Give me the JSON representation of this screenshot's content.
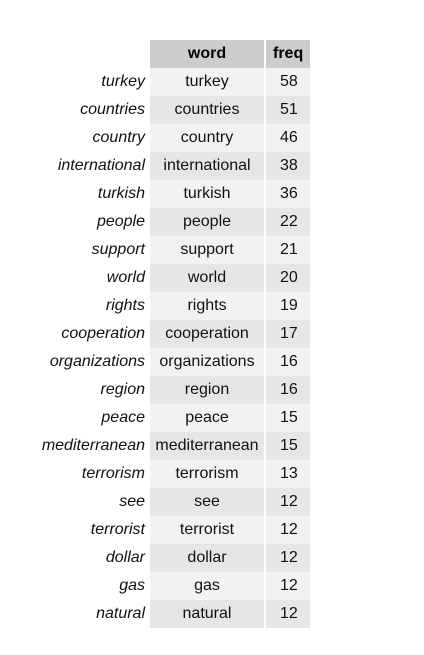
{
  "table": {
    "header": {
      "word": "word",
      "freq": "freq"
    },
    "rows": [
      {
        "label": "turkey",
        "word": "turkey",
        "freq": "58"
      },
      {
        "label": "countries",
        "word": "countries",
        "freq": "51"
      },
      {
        "label": "country",
        "word": "country",
        "freq": "46"
      },
      {
        "label": "international",
        "word": "international",
        "freq": "38"
      },
      {
        "label": "turkish",
        "word": "turkish",
        "freq": "36"
      },
      {
        "label": "people",
        "word": "people",
        "freq": "22"
      },
      {
        "label": "support",
        "word": "support",
        "freq": "21"
      },
      {
        "label": "world",
        "word": "world",
        "freq": "20"
      },
      {
        "label": "rights",
        "word": "rights",
        "freq": "19"
      },
      {
        "label": "cooperation",
        "word": "cooperation",
        "freq": "17"
      },
      {
        "label": "organizations",
        "word": "organizations",
        "freq": "16"
      },
      {
        "label": "region",
        "word": "region",
        "freq": "16"
      },
      {
        "label": "peace",
        "word": "peace",
        "freq": "15"
      },
      {
        "label": "mediterranean",
        "word": "mediterranean",
        "freq": "15"
      },
      {
        "label": "terrorism",
        "word": "terrorism",
        "freq": "13"
      },
      {
        "label": "see",
        "word": "see",
        "freq": "12"
      },
      {
        "label": "terrorist",
        "word": "terrorist",
        "freq": "12"
      },
      {
        "label": "dollar",
        "word": "dollar",
        "freq": "12"
      },
      {
        "label": "gas",
        "word": "gas",
        "freq": "12"
      },
      {
        "label": "natural",
        "word": "natural",
        "freq": "12"
      }
    ]
  }
}
